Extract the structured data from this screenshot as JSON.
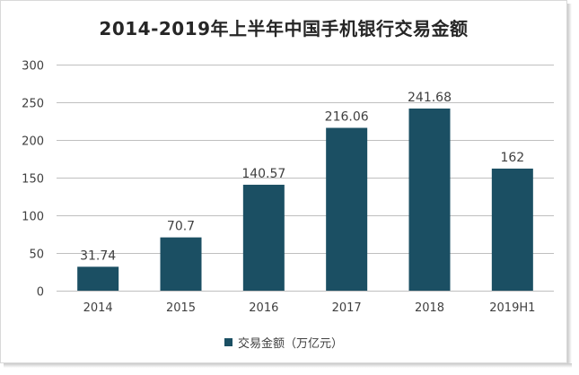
{
  "chart_data": {
    "type": "bar",
    "title": "2014-2019年上半年中国手机银行交易金额",
    "categories": [
      "2014",
      "2015",
      "2016",
      "2017",
      "2018",
      "2019H1"
    ],
    "series": [
      {
        "name": "交易金额（万亿元）",
        "values": [
          31.74,
          70.7,
          140.57,
          216.06,
          241.68,
          162
        ],
        "labels": [
          "31.74",
          "70.7",
          "140.57",
          "216.06",
          "241.68",
          "162"
        ]
      }
    ],
    "yticks": [
      "0",
      "50",
      "100",
      "150",
      "200",
      "250",
      "300"
    ],
    "ylim": [
      0,
      300
    ],
    "grid": true,
    "legend_position": "bottom"
  },
  "colors": {
    "bar": "#1b4f63",
    "grid": "#bfbfbf",
    "axis_text": "#404040",
    "data_label": "#404040"
  }
}
